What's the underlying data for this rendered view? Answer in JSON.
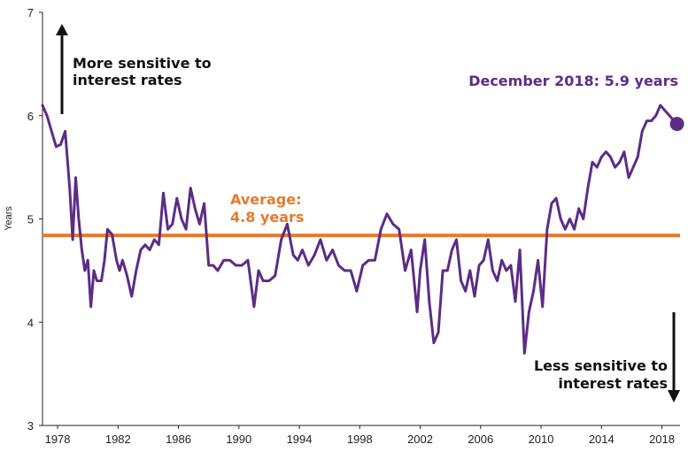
{
  "chart_data": {
    "type": "line",
    "ylabel": "Years",
    "xlabel": "",
    "ylim": [
      3,
      7
    ],
    "xlim": [
      1977,
      2019.2
    ],
    "x_ticks": [
      "1978",
      "1982",
      "1986",
      "1990",
      "1994",
      "1998",
      "2002",
      "2006",
      "2010",
      "2014",
      "2018"
    ],
    "y_ticks": [
      "3",
      "4",
      "5",
      "6",
      "7"
    ],
    "grid": false,
    "colors": {
      "series": "#5b2d86",
      "average": "#e8792b",
      "text": "#222222"
    },
    "series": [
      {
        "x": [
          1977.0,
          1977.3,
          1977.6,
          1977.9,
          1978.2,
          1978.5,
          1978.8,
          1979.0,
          1979.2,
          1979.4,
          1979.6,
          1979.8,
          1980.0,
          1980.2,
          1980.4,
          1980.6,
          1980.9,
          1981.1,
          1981.3,
          1981.6,
          1981.9,
          1982.1,
          1982.3,
          1982.6,
          1982.9,
          1983.2,
          1983.5,
          1983.8,
          1984.1,
          1984.4,
          1984.7,
          1985.0,
          1985.3,
          1985.6,
          1985.9,
          1986.2,
          1986.5,
          1986.8,
          1987.1,
          1987.4,
          1987.7,
          1988.0,
          1988.3,
          1988.6,
          1989.0,
          1989.4,
          1989.8,
          1990.2,
          1990.6,
          1991.0,
          1991.3,
          1991.6,
          1992.0,
          1992.4,
          1992.8,
          1993.2,
          1993.6,
          1993.9,
          1994.2,
          1994.6,
          1995.0,
          1995.4,
          1995.8,
          1996.2,
          1996.6,
          1997.0,
          1997.4,
          1997.8,
          1998.2,
          1998.6,
          1999.0,
          1999.4,
          1999.8,
          2000.2,
          2000.6,
          2001.0,
          2001.4,
          2001.8,
          2002.0,
          2002.3,
          2002.6,
          2002.9,
          2003.2,
          2003.5,
          2003.8,
          2004.1,
          2004.4,
          2004.7,
          2005.0,
          2005.3,
          2005.6,
          2005.9,
          2006.2,
          2006.5,
          2006.8,
          2007.1,
          2007.4,
          2007.7,
          2008.0,
          2008.3,
          2008.6,
          2008.9,
          2009.2,
          2009.5,
          2009.8,
          2010.1,
          2010.4,
          2010.7,
          2011.0,
          2011.3,
          2011.6,
          2011.9,
          2012.2,
          2012.5,
          2012.8,
          2013.1,
          2013.4,
          2013.7,
          2014.0,
          2014.3,
          2014.6,
          2014.9,
          2015.2,
          2015.5,
          2015.8,
          2016.1,
          2016.4,
          2016.7,
          2017.0,
          2017.3,
          2017.6,
          2017.9,
          2018.2,
          2018.5,
          2018.8,
          2019.0
        ],
        "values": [
          6.1,
          6.0,
          5.85,
          5.7,
          5.72,
          5.85,
          5.3,
          4.8,
          5.4,
          5.0,
          4.7,
          4.5,
          4.6,
          4.15,
          4.5,
          4.4,
          4.4,
          4.6,
          4.9,
          4.85,
          4.6,
          4.5,
          4.6,
          4.45,
          4.25,
          4.5,
          4.7,
          4.75,
          4.7,
          4.8,
          4.75,
          5.25,
          4.9,
          4.95,
          5.2,
          5.0,
          4.9,
          5.3,
          5.1,
          4.95,
          5.15,
          4.55,
          4.55,
          4.5,
          4.6,
          4.6,
          4.55,
          4.55,
          4.6,
          4.15,
          4.5,
          4.4,
          4.4,
          4.45,
          4.8,
          4.95,
          4.65,
          4.6,
          4.7,
          4.55,
          4.65,
          4.8,
          4.6,
          4.7,
          4.55,
          4.5,
          4.5,
          4.3,
          4.55,
          4.6,
          4.6,
          4.9,
          5.05,
          4.95,
          4.9,
          4.5,
          4.7,
          4.1,
          4.5,
          4.8,
          4.2,
          3.8,
          3.9,
          4.5,
          4.5,
          4.7,
          4.8,
          4.4,
          4.3,
          4.5,
          4.25,
          4.55,
          4.6,
          4.8,
          4.5,
          4.4,
          4.6,
          4.5,
          4.55,
          4.2,
          4.7,
          3.7,
          4.1,
          4.3,
          4.6,
          4.15,
          4.9,
          5.15,
          5.2,
          5.0,
          4.9,
          5.0,
          4.9,
          5.1,
          5.0,
          5.3,
          5.55,
          5.5,
          5.6,
          5.65,
          5.6,
          5.5,
          5.55,
          5.65,
          5.4,
          5.5,
          5.6,
          5.85,
          5.95,
          5.95,
          6.0,
          6.1,
          6.05,
          6.0,
          5.95,
          5.92
        ]
      }
    ],
    "average": {
      "value": 4.84,
      "label_line1": "Average:",
      "label_line2": "4.8 years"
    },
    "endpoint": {
      "x": 2019.0,
      "y": 5.92,
      "label": "December 2018: 5.9 years"
    },
    "annotations": {
      "top_line1": "More sensitive to",
      "top_line2": "interest rates",
      "bottom_line1": "Less sensitive to",
      "bottom_line2": "interest rates"
    }
  }
}
